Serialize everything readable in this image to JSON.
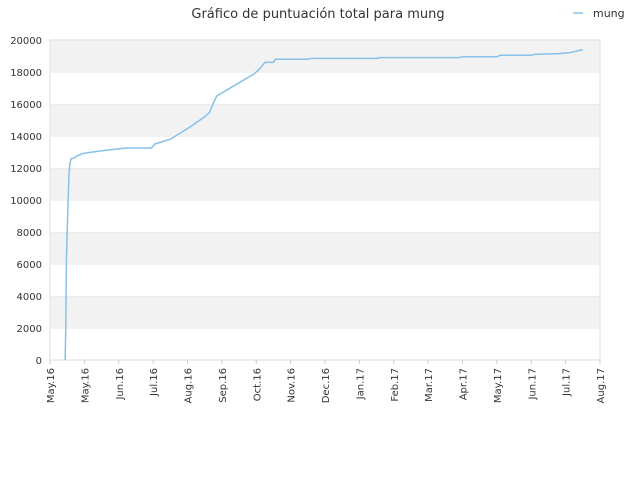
{
  "chart_data": {
    "type": "line",
    "title": "Gráfico de puntuación total para mung",
    "xlabel": "",
    "ylabel": "",
    "ylim": [
      0,
      20000
    ],
    "yticks": [
      0,
      2000,
      4000,
      6000,
      8000,
      10000,
      12000,
      14000,
      16000,
      18000,
      20000
    ],
    "xtick_labels": [
      "May.16",
      "May.16",
      "Jun.16",
      "Jul.16",
      "Aug.16",
      "Sep.16",
      "Oct.16",
      "Nov.16",
      "Dec.16",
      "Jan.17",
      "Feb.17",
      "Mar.17",
      "Apr.17",
      "May.17",
      "Jun.17",
      "Jul.17",
      "Aug.17"
    ],
    "xlim": [
      0,
      16
    ],
    "grid": "horizontal bands",
    "legend_position": "top-right",
    "series": [
      {
        "name": "mung",
        "color": "#85c1e9",
        "x": [
          0.44,
          0.46,
          0.47,
          0.48,
          0.52,
          0.55,
          0.58,
          0.62,
          0.68,
          0.78,
          0.95,
          1.1,
          1.4,
          1.8,
          2.2,
          2.4,
          2.7,
          2.95,
          3.05,
          3.5,
          4.1,
          4.5,
          4.65,
          4.7,
          4.85,
          5.4,
          5.95,
          6.1,
          6.25,
          6.5,
          6.55,
          6.65,
          7.5,
          7.6,
          8.5,
          9.5,
          9.6,
          10.5,
          11.5,
          11.9,
          12.0,
          13.0,
          13.1,
          14.0,
          14.1,
          14.8,
          15.1,
          15.5
        ],
        "y": [
          0,
          2100,
          4800,
          6500,
          9500,
          11500,
          12300,
          12600,
          12600,
          12750,
          12900,
          12950,
          13050,
          13150,
          13250,
          13250,
          13250,
          13250,
          13500,
          13800,
          14600,
          15200,
          15500,
          15800,
          16500,
          17200,
          17900,
          18200,
          18600,
          18600,
          18800,
          18800,
          18800,
          18850,
          18850,
          18850,
          18900,
          18900,
          18900,
          18900,
          18950,
          18950,
          19050,
          19050,
          19100,
          19150,
          19200,
          19400
        ]
      }
    ]
  }
}
